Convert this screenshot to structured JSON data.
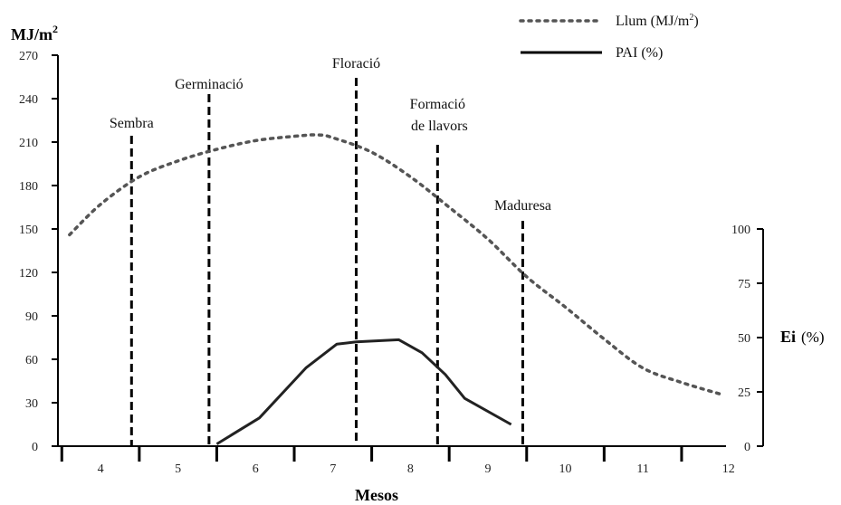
{
  "chart_data": {
    "type": "line",
    "y_left_label": "MJ/m",
    "y_left_label_sup": "2",
    "y_left_ticks": [
      0,
      30,
      60,
      90,
      120,
      150,
      180,
      210,
      240,
      270
    ],
    "y_left_range": [
      0,
      270
    ],
    "y_right_label_bold": "Ei",
    "y_right_label_unit": "(%)",
    "y_right_ticks": [
      0,
      25,
      50,
      75,
      100
    ],
    "y_right_range": [
      0,
      100
    ],
    "xlabel": "Mesos",
    "x_ticks": [
      4,
      5,
      6,
      7,
      8,
      9,
      10,
      11,
      12
    ],
    "x_range": [
      3.45,
      12.05
    ],
    "series": [
      {
        "name": "Llum (MJ/m",
        "name_sup": "2",
        "name_suffix": ")",
        "axis": "left",
        "style": "dotted",
        "x": [
          3.6,
          4.0,
          4.5,
          5.0,
          5.5,
          6.0,
          6.5,
          6.8,
          7.0,
          7.5,
          8.0,
          8.5,
          9.0,
          9.5,
          10.0,
          10.5,
          11.0,
          11.5,
          12.0
        ],
        "y": [
          146,
          167,
          186,
          197,
          205,
          211,
          214,
          215,
          213,
          203,
          186,
          165,
          143,
          117,
          96,
          74,
          54,
          44,
          36
        ]
      },
      {
        "name": "PAI (%)",
        "axis": "right",
        "style": "solid",
        "x": [
          5.5,
          6.05,
          6.65,
          7.05,
          7.3,
          7.85,
          8.15,
          8.45,
          8.7,
          9.3
        ],
        "y": [
          1,
          13,
          36,
          47,
          48,
          49,
          43,
          33,
          22,
          10
        ]
      }
    ],
    "stages": [
      {
        "label": "Sembra",
        "x": 4.4
      },
      {
        "label": "Germinació",
        "x": 5.4
      },
      {
        "label": "Floració",
        "x": 7.3
      },
      {
        "label": "Formació",
        "label2": "de llavors",
        "x": 8.35
      },
      {
        "label": "Maduresa",
        "x": 9.45
      }
    ],
    "grid": false,
    "legend": "top-right"
  }
}
